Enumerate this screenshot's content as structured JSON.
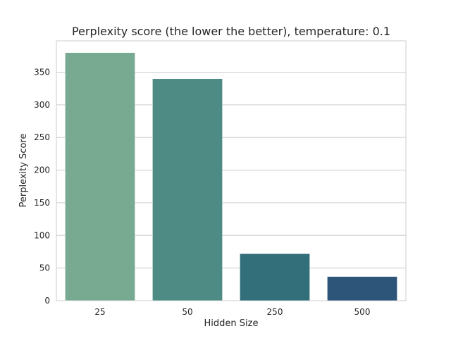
{
  "chart_data": {
    "type": "bar",
    "title": "Perplexity score (the lower the better), temperature: 0.1",
    "xlabel": "Hidden Size",
    "ylabel": "Perplexity Score",
    "categories": [
      "25",
      "50",
      "250",
      "500"
    ],
    "values": [
      380,
      340,
      72,
      37
    ],
    "colors": [
      "#78AA91",
      "#4E8B84",
      "#336F7B",
      "#2D5479"
    ],
    "ylim": [
      0,
      398
    ],
    "yticks": [
      0,
      50,
      100,
      150,
      200,
      250,
      300,
      350
    ],
    "grid": true,
    "grid_axis": "y",
    "legend": "none"
  }
}
